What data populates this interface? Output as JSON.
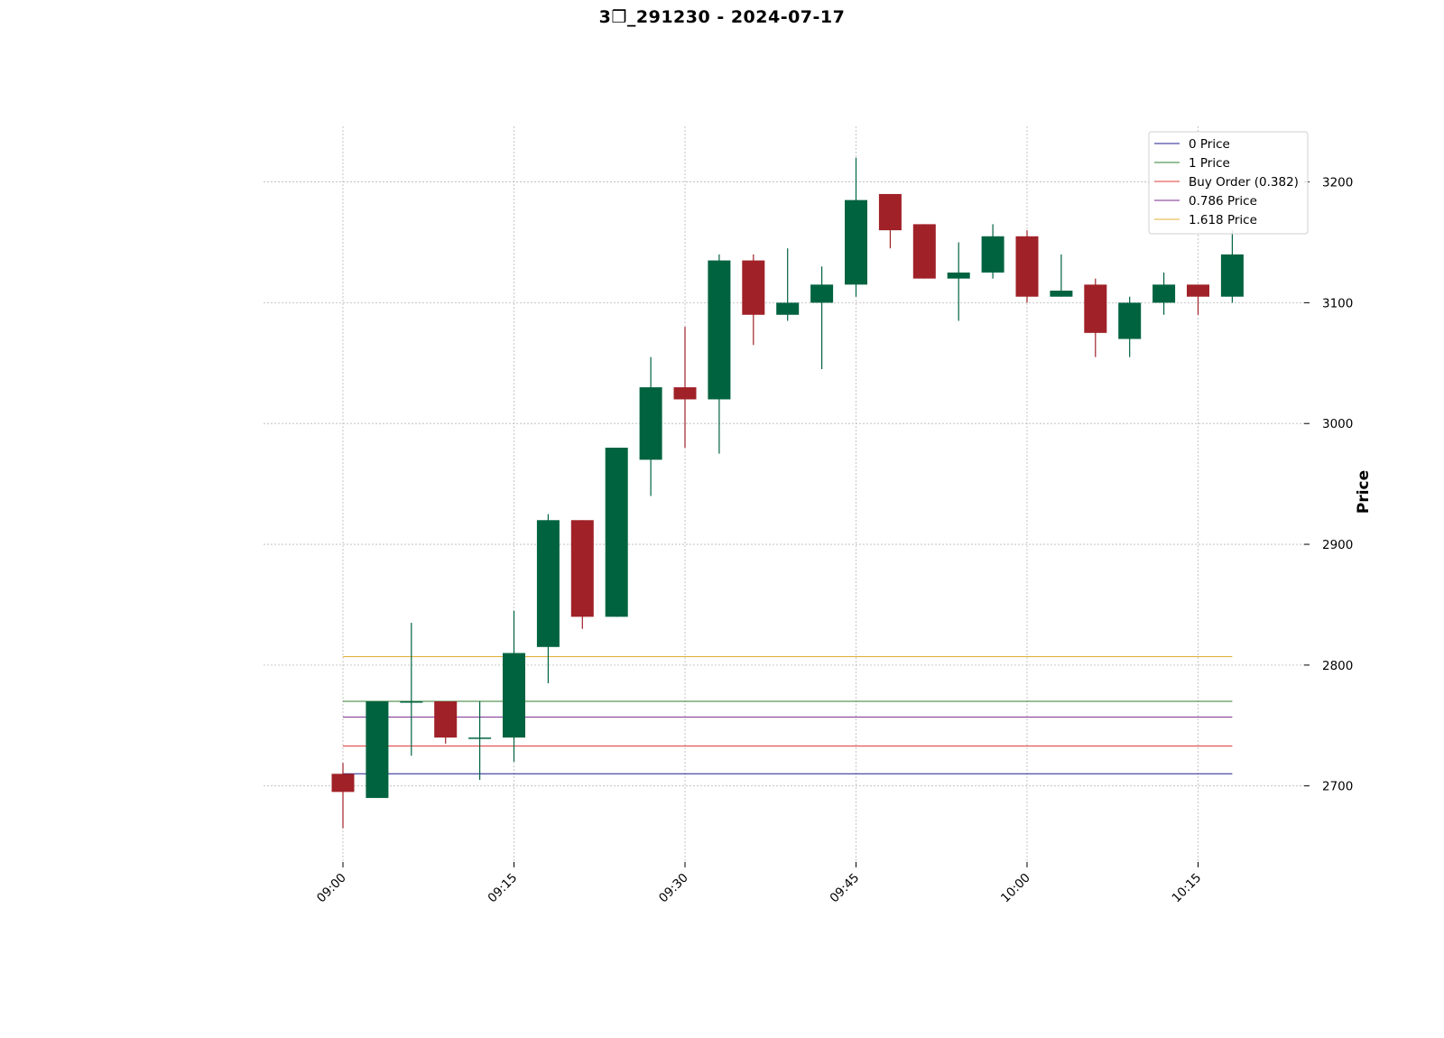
{
  "chart_data": {
    "type": "candlestick",
    "title": "3❒_291230 - 2024-07-17",
    "ylabel": "Price",
    "xlabel": "",
    "ylim": [
      2637,
      3246
    ],
    "yticks": [
      2700,
      2800,
      2900,
      3000,
      3100,
      3200
    ],
    "xtick_labels": [
      {
        "label": "09:00",
        "index": 0
      },
      {
        "label": "09:15",
        "index": 5
      },
      {
        "label": "09:30",
        "index": 10
      },
      {
        "label": "09:45",
        "index": 15
      },
      {
        "label": "10:00",
        "index": 20
      },
      {
        "label": "10:15",
        "index": 25
      }
    ],
    "grid": true,
    "legend_position": "top-right",
    "up_color": "#006340",
    "down_color": "#a02128",
    "candles": [
      {
        "time": "09:00",
        "open": 2710,
        "high": 2719,
        "low": 2665,
        "close": 2695
      },
      {
        "time": "09:03",
        "open": 2690,
        "high": 2770,
        "low": 2690,
        "close": 2770
      },
      {
        "time": "09:06",
        "open": 2770,
        "high": 2835,
        "low": 2725,
        "close": 2770
      },
      {
        "time": "09:09",
        "open": 2770,
        "high": 2770,
        "low": 2735,
        "close": 2740
      },
      {
        "time": "09:12",
        "open": 2740,
        "high": 2770,
        "low": 2705,
        "close": 2740
      },
      {
        "time": "09:15",
        "open": 2740,
        "high": 2845,
        "low": 2720,
        "close": 2810
      },
      {
        "time": "09:18",
        "open": 2815,
        "high": 2925,
        "low": 2785,
        "close": 2920
      },
      {
        "time": "09:21",
        "open": 2920,
        "high": 2920,
        "low": 2830,
        "close": 2840
      },
      {
        "time": "09:24",
        "open": 2840,
        "high": 2980,
        "low": 2840,
        "close": 2980
      },
      {
        "time": "09:27",
        "open": 2970,
        "high": 3055,
        "low": 2940,
        "close": 3030
      },
      {
        "time": "09:30",
        "open": 3030,
        "high": 3080,
        "low": 2980,
        "close": 3020
      },
      {
        "time": "09:33",
        "open": 3020,
        "high": 3140,
        "low": 2975,
        "close": 3135
      },
      {
        "time": "09:36",
        "open": 3135,
        "high": 3140,
        "low": 3065,
        "close": 3090
      },
      {
        "time": "09:39",
        "open": 3090,
        "high": 3145,
        "low": 3085,
        "close": 3100
      },
      {
        "time": "09:42",
        "open": 3100,
        "high": 3130,
        "low": 3045,
        "close": 3115
      },
      {
        "time": "09:45",
        "open": 3115,
        "high": 3220,
        "low": 3105,
        "close": 3185
      },
      {
        "time": "09:48",
        "open": 3190,
        "high": 3190,
        "low": 3145,
        "close": 3160
      },
      {
        "time": "09:51",
        "open": 3165,
        "high": 3165,
        "low": 3120,
        "close": 3120
      },
      {
        "time": "09:54",
        "open": 3120,
        "high": 3150,
        "low": 3085,
        "close": 3125
      },
      {
        "time": "09:57",
        "open": 3125,
        "high": 3165,
        "low": 3120,
        "close": 3155
      },
      {
        "time": "10:00",
        "open": 3155,
        "high": 3160,
        "low": 3100,
        "close": 3105
      },
      {
        "time": "10:03",
        "open": 3105,
        "high": 3140,
        "low": 3105,
        "close": 3110
      },
      {
        "time": "10:06",
        "open": 3115,
        "high": 3120,
        "low": 3055,
        "close": 3075
      },
      {
        "time": "10:09",
        "open": 3070,
        "high": 3105,
        "low": 3055,
        "close": 3100
      },
      {
        "time": "10:12",
        "open": 3100,
        "high": 3125,
        "low": 3090,
        "close": 3115
      },
      {
        "time": "10:15",
        "open": 3115,
        "high": 3115,
        "low": 3090,
        "close": 3105
      },
      {
        "time": "10:18",
        "open": 3105,
        "high": 3160,
        "low": 3100,
        "close": 3140
      }
    ],
    "lines": [
      {
        "name": "0 Price",
        "value": 2710,
        "color": "#1f1f8f"
      },
      {
        "name": "1 Price",
        "value": 2770,
        "color": "#2f7f2f"
      },
      {
        "name": "Buy Order (0.382)",
        "value": 2733,
        "color": "#e03c3c"
      },
      {
        "name": "0.786 Price",
        "value": 2757,
        "color": "#7a2a8f"
      },
      {
        "name": "1.618 Price",
        "value": 2807,
        "color": "#e0b030"
      }
    ]
  }
}
